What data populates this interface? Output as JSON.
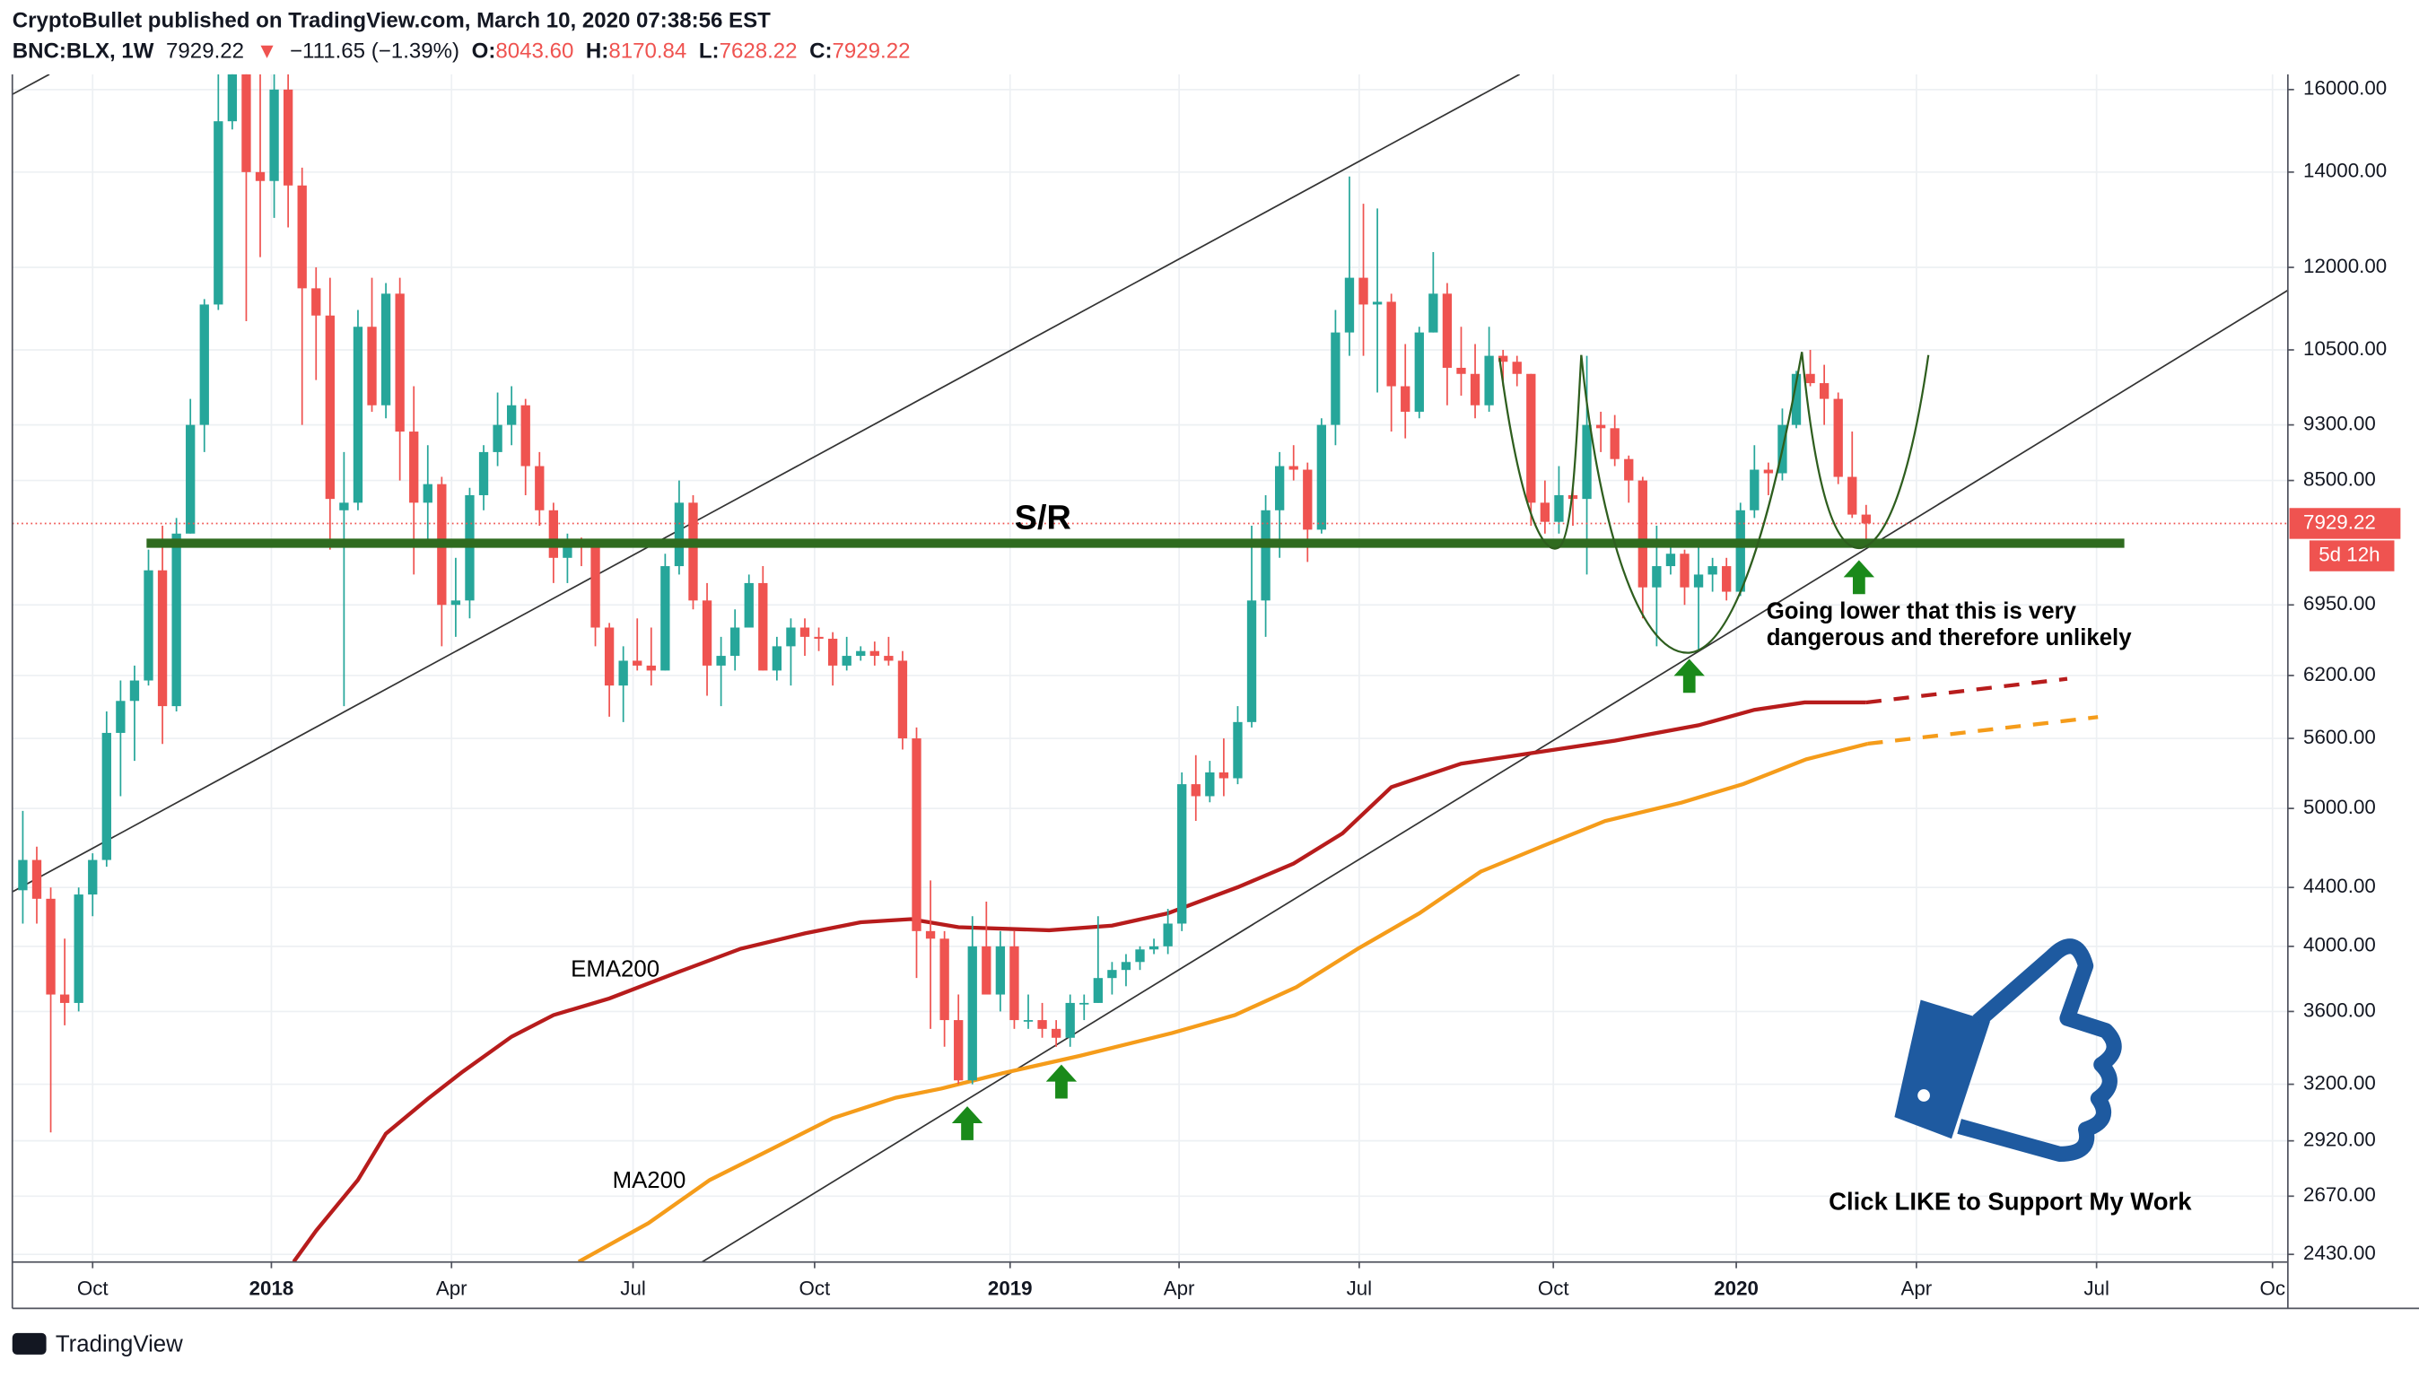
{
  "chart_data": {
    "type": "candlestick",
    "header": {
      "line1": "CryptoBullet published on TradingView.com, March 10, 2020 07:38:56 EST",
      "symbol": "BNC:BLX, 1W",
      "last": "7929.22",
      "arrow": "▼",
      "change": "−111.65 (−1.39%)",
      "o_label": "O:",
      "o": "8043.60",
      "h_label": "H:",
      "h": "8170.84",
      "l_label": "L:",
      "l": "7628.22",
      "c_label": "C:",
      "c": "7929.22"
    },
    "countdown": "5d 12h",
    "footer": "TradingView",
    "log_scale": true,
    "grid": true,
    "colors": {
      "up": "#26a69a",
      "down": "#ef5350"
    },
    "ylim": [
      2400,
      16400
    ],
    "yticks": [
      {
        "value": 16000,
        "label": "16000.00"
      },
      {
        "value": 14000,
        "label": "14000.00"
      },
      {
        "value": 12000,
        "label": "12000.00"
      },
      {
        "value": 10500,
        "label": "10500.00"
      },
      {
        "value": 9300,
        "label": "9300.00"
      },
      {
        "value": 8500,
        "label": "8500.00"
      },
      {
        "value": 6950,
        "label": "6950.00"
      },
      {
        "value": 6200,
        "label": "6200.00"
      },
      {
        "value": 5600,
        "label": "5600.00"
      },
      {
        "value": 5000,
        "label": "5000.00"
      },
      {
        "value": 4400,
        "label": "4400.00"
      },
      {
        "value": 4000,
        "label": "4000.00"
      },
      {
        "value": 3600,
        "label": "3600.00"
      },
      {
        "value": 3200,
        "label": "3200.00"
      },
      {
        "value": 2920,
        "label": "2920.00"
      },
      {
        "value": 2670,
        "label": "2670.00"
      },
      {
        "value": 2430,
        "label": "2430.00"
      }
    ],
    "xlim": [
      -5.75,
      157.2
    ],
    "xticks": [
      {
        "value": 0,
        "label": "Oct"
      },
      {
        "value": 12.8,
        "label": "2018"
      },
      {
        "value": 25.7,
        "label": "Apr"
      },
      {
        "value": 38.7,
        "label": "Jul"
      },
      {
        "value": 51.7,
        "label": "Oct"
      },
      {
        "value": 65.7,
        "label": "2019"
      },
      {
        "value": 77.8,
        "label": "Apr"
      },
      {
        "value": 90.7,
        "label": "Jul"
      },
      {
        "value": 104.6,
        "label": "Oct"
      },
      {
        "value": 117.7,
        "label": "2020"
      },
      {
        "value": 130.6,
        "label": "Apr"
      },
      {
        "value": 143.5,
        "label": "Jul"
      },
      {
        "value": 156.1,
        "label": "Oc"
      }
    ],
    "x": [
      -5,
      -4,
      -3,
      -2,
      -1,
      0,
      1,
      2,
      3,
      4,
      5,
      6,
      7,
      8,
      9,
      10,
      11,
      12,
      13,
      14,
      15,
      16,
      17,
      18,
      19,
      20,
      21,
      22,
      23,
      24,
      25,
      26,
      27,
      28,
      29,
      30,
      31,
      32,
      33,
      34,
      35,
      36,
      37,
      38,
      39,
      40,
      41,
      42,
      43,
      44,
      45,
      46,
      47,
      48,
      49,
      50,
      51,
      52,
      53,
      54,
      55,
      56,
      57,
      58,
      59,
      60,
      61,
      62,
      63,
      64,
      65,
      66,
      67,
      68,
      69,
      70,
      71,
      72,
      73,
      74,
      75,
      76,
      77,
      78,
      79,
      80,
      81,
      82,
      83,
      84,
      85,
      86,
      87,
      88,
      89,
      90,
      91,
      92,
      93,
      94,
      95,
      96,
      97,
      98,
      99,
      100,
      101,
      102,
      103,
      104,
      105,
      106,
      107,
      108,
      109,
      110,
      111,
      112,
      113,
      114,
      115,
      116,
      117,
      118,
      119,
      120,
      121,
      122,
      123,
      124,
      125,
      126,
      127
    ],
    "candles": [
      [
        4380,
        4980,
        4150,
        4600
      ],
      [
        4600,
        4700,
        4150,
        4320
      ],
      [
        4320,
        4400,
        2960,
        3700
      ],
      [
        3700,
        4050,
        3520,
        3650
      ],
      [
        3650,
        4400,
        3600,
        4350
      ],
      [
        4350,
        4650,
        4200,
        4600
      ],
      [
        4600,
        5850,
        4550,
        5650
      ],
      [
        5650,
        6150,
        5100,
        5950
      ],
      [
        5950,
        6300,
        5400,
        6150
      ],
      [
        6150,
        7600,
        6100,
        7350
      ],
      [
        7350,
        7900,
        5550,
        5900
      ],
      [
        5900,
        8000,
        5850,
        7800
      ],
      [
        7800,
        9700,
        7800,
        9300
      ],
      [
        9300,
        11400,
        8900,
        11300
      ],
      [
        11300,
        17000,
        11200,
        15200
      ],
      [
        15200,
        17800,
        15000,
        17500
      ],
      [
        17500,
        19500,
        11000,
        14000
      ],
      [
        14000,
        16500,
        12200,
        13800
      ],
      [
        13800,
        17200,
        13000,
        16000
      ],
      [
        16000,
        17100,
        12800,
        13700
      ],
      [
        13700,
        14100,
        9300,
        11600
      ],
      [
        11600,
        12000,
        10000,
        11100
      ],
      [
        11100,
        11800,
        7600,
        8250
      ],
      [
        8100,
        8900,
        5900,
        8200
      ],
      [
        8200,
        11200,
        8100,
        10900
      ],
      [
        10900,
        11800,
        9500,
        9600
      ],
      [
        9600,
        11700,
        9400,
        11500
      ],
      [
        11500,
        11800,
        8500,
        9200
      ],
      [
        9200,
        9900,
        7300,
        8200
      ],
      [
        8200,
        9000,
        7700,
        8450
      ],
      [
        8450,
        8550,
        6500,
        6950
      ],
      [
        6950,
        7500,
        6600,
        7000
      ],
      [
        7000,
        8400,
        6800,
        8300
      ],
      [
        8300,
        9000,
        8100,
        8900
      ],
      [
        8900,
        9800,
        8700,
        9300
      ],
      [
        9300,
        9900,
        9000,
        9600
      ],
      [
        9600,
        9700,
        8300,
        8700
      ],
      [
        8700,
        8900,
        7900,
        8100
      ],
      [
        8100,
        8200,
        7200,
        7500
      ],
      [
        7500,
        7800,
        7200,
        7700
      ],
      [
        7700,
        7750,
        7400,
        7650
      ],
      [
        7650,
        7700,
        6500,
        6700
      ],
      [
        6700,
        6750,
        5800,
        6100
      ],
      [
        6100,
        6500,
        5750,
        6350
      ],
      [
        6350,
        6800,
        6250,
        6300
      ],
      [
        6300,
        6700,
        6100,
        6250
      ],
      [
        6250,
        7550,
        6250,
        7400
      ],
      [
        7400,
        8500,
        7300,
        8200
      ],
      [
        8200,
        8300,
        6900,
        7000
      ],
      [
        7000,
        7200,
        6000,
        6300
      ],
      [
        6300,
        6600,
        5900,
        6400
      ],
      [
        6400,
        6900,
        6250,
        6700
      ],
      [
        6700,
        7300,
        6700,
        7200
      ],
      [
        7200,
        7400,
        6250,
        6250
      ],
      [
        6250,
        6600,
        6150,
        6500
      ],
      [
        6500,
        6800,
        6100,
        6700
      ],
      [
        6700,
        6800,
        6400,
        6600
      ],
      [
        6600,
        6700,
        6450,
        6580
      ],
      [
        6580,
        6650,
        6100,
        6300
      ],
      [
        6300,
        6600,
        6250,
        6400
      ],
      [
        6400,
        6500,
        6350,
        6450
      ],
      [
        6450,
        6550,
        6300,
        6400
      ],
      [
        6400,
        6600,
        6300,
        6350
      ],
      [
        6350,
        6450,
        5500,
        5600
      ],
      [
        5600,
        5700,
        3800,
        4100
      ],
      [
        4100,
        4450,
        3500,
        4050
      ],
      [
        4050,
        4100,
        3400,
        3550
      ],
      [
        3550,
        3700,
        3200,
        3220
      ],
      [
        3220,
        4200,
        3200,
        4000
      ],
      [
        4000,
        4300,
        3700,
        3700
      ],
      [
        3700,
        4100,
        3600,
        4000
      ],
      [
        4000,
        4100,
        3500,
        3550
      ],
      [
        3550,
        3700,
        3500,
        3550
      ],
      [
        3550,
        3650,
        3450,
        3500
      ],
      [
        3500,
        3550,
        3400,
        3450
      ],
      [
        3450,
        3700,
        3400,
        3650
      ],
      [
        3650,
        3700,
        3550,
        3650
      ],
      [
        3650,
        4200,
        3650,
        3800
      ],
      [
        3800,
        3900,
        3700,
        3850
      ],
      [
        3850,
        3950,
        3750,
        3900
      ],
      [
        3900,
        4000,
        3850,
        3980
      ],
      [
        3980,
        4050,
        3950,
        4000
      ],
      [
        4000,
        4250,
        3950,
        4150
      ],
      [
        4150,
        5300,
        4100,
        5200
      ],
      [
        5200,
        5450,
        4900,
        5100
      ],
      [
        5100,
        5400,
        5050,
        5300
      ],
      [
        5300,
        5600,
        5100,
        5250
      ],
      [
        5250,
        5900,
        5200,
        5750
      ],
      [
        5750,
        7900,
        5700,
        7000
      ],
      [
        7000,
        8300,
        6600,
        8100
      ],
      [
        8100,
        8900,
        7500,
        8700
      ],
      [
        8700,
        9000,
        8500,
        8650
      ],
      [
        8650,
        8750,
        7450,
        7850
      ],
      [
        7850,
        9400,
        7800,
        9300
      ],
      [
        9300,
        11200,
        9000,
        10800
      ],
      [
        10800,
        13900,
        10400,
        11800
      ],
      [
        11800,
        13300,
        10400,
        11300
      ],
      [
        11300,
        13200,
        9800,
        11350
      ],
      [
        11350,
        11500,
        9200,
        9900
      ],
      [
        9900,
        10600,
        9100,
        9500
      ],
      [
        9500,
        10900,
        9400,
        10800
      ],
      [
        10800,
        12300,
        10800,
        11500
      ],
      [
        11500,
        11700,
        9600,
        10200
      ],
      [
        10200,
        10900,
        9750,
        10100
      ],
      [
        10100,
        10600,
        9400,
        9600
      ],
      [
        9600,
        10900,
        9500,
        10400
      ],
      [
        10400,
        10500,
        9900,
        10300
      ],
      [
        10300,
        10400,
        9900,
        10100
      ],
      [
        10100,
        10100,
        7900,
        8200
      ],
      [
        8200,
        8500,
        7800,
        7950
      ],
      [
        7950,
        8700,
        7800,
        8300
      ],
      [
        8300,
        8400,
        7900,
        8250
      ],
      [
        8250,
        10400,
        7300,
        9300
      ],
      [
        9300,
        9500,
        8900,
        9250
      ],
      [
        9250,
        9450,
        8700,
        8800
      ],
      [
        8800,
        8850,
        8200,
        8500
      ],
      [
        8500,
        8550,
        6800,
        7150
      ],
      [
        7150,
        7900,
        6500,
        7400
      ],
      [
        7400,
        7700,
        7300,
        7550
      ],
      [
        7550,
        7600,
        6950,
        7150
      ],
      [
        7150,
        7700,
        6450,
        7300
      ],
      [
        7300,
        7500,
        7100,
        7400
      ],
      [
        7400,
        7500,
        7000,
        7100
      ],
      [
        7100,
        8200,
        7050,
        8100
      ],
      [
        8100,
        9000,
        8000,
        8650
      ],
      [
        8650,
        8750,
        8300,
        8600
      ],
      [
        8600,
        9550,
        8500,
        9300
      ],
      [
        9300,
        10150,
        9250,
        10100
      ],
      [
        10100,
        10500,
        9900,
        9950
      ],
      [
        9950,
        10250,
        9300,
        9700
      ],
      [
        9700,
        9800,
        8450,
        8550
      ],
      [
        8550,
        9200,
        8000,
        8043.6
      ],
      [
        8043.6,
        8170.84,
        7628.22,
        7929.22
      ]
    ],
    "series": [
      {
        "name": "EMA200",
        "color": "#b71c1c",
        "x": [
          14.4,
          16,
          19,
          21,
          24,
          26.5,
          30,
          33,
          37,
          42,
          46.4,
          51,
          55,
          58.6,
          62,
          68.5,
          73,
          77,
          82,
          86,
          89.5,
          93,
          98,
          104,
          109,
          115,
          119,
          122.6,
          127
        ],
        "values": [
          2401,
          2525,
          2741,
          2954,
          3125,
          3266,
          3456,
          3579,
          3677,
          3839,
          3984,
          4085,
          4159,
          4180,
          4126,
          4106,
          4136,
          4220,
          4402,
          4573,
          4802,
          5175,
          5376,
          5485,
          5579,
          5720,
          5865,
          5936,
          5936
        ]
      },
      {
        "name": "MA200",
        "color": "#f59c1a",
        "x": [
          34.8,
          39.8,
          44.2,
          48.6,
          53,
          57.5,
          60.8,
          65.2,
          70.7,
          77.3,
          81.8,
          86.2,
          90.6,
          95,
          99.4,
          103.9,
          108.3,
          113.8,
          118.2,
          122.7,
          127.1
        ],
        "values": [
          2401,
          2556,
          2741,
          2881,
          3029,
          3131,
          3178,
          3258,
          3351,
          3477,
          3579,
          3744,
          3984,
          4220,
          4514,
          4707,
          4899,
          5048,
          5201,
          5414,
          5551
        ]
      }
    ],
    "projections": [
      {
        "color": "#b71c1c",
        "x": [
          127,
          141.4
        ],
        "values": [
          5936,
          6166
        ]
      },
      {
        "color": "#f59c1a",
        "x": [
          127.1,
          143.6
        ],
        "values": [
          5551,
          5796
        ]
      }
    ],
    "annotations": {
      "sr": "S/R",
      "note": [
        "Going lower that this is very",
        "dangerous and therefore unlikely"
      ],
      "like": "Click LIKE to Support My Work"
    }
  }
}
